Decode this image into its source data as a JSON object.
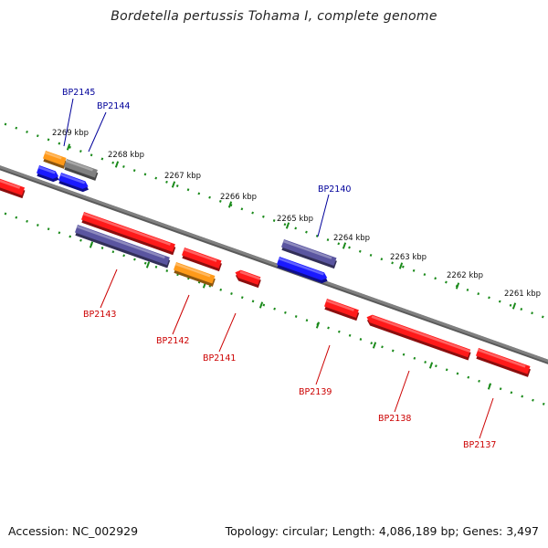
{
  "title": "Bordetella pertussis Tohama I, complete genome",
  "footer": {
    "accession": "Accession: NC_002929",
    "summary": "Topology: circular; Length: 4,086,189 bp; Genes: 3,497"
  },
  "colors": {
    "background": "#ffffff",
    "backbone": "#808080",
    "tick": "#1a8a1a",
    "red_gene": "#ff1a1a",
    "blue_gene": "#1a1aff",
    "purple_gene": "#5a55a0",
    "orange_gene": "#ff9a1a",
    "gray_gene": "#808080",
    "label_forward": "#00009a",
    "label_reverse": "#cc0000"
  },
  "scale_labels": [
    "2269 kbp",
    "2268 kbp",
    "2267 kbp",
    "2266 kbp",
    "2265 kbp",
    "2264 kbp",
    "2263 kbp",
    "2262 kbp",
    "2261 kbp"
  ],
  "gene_labels": [
    {
      "text": "BP2145",
      "strand": "forward"
    },
    {
      "text": "BP2144",
      "strand": "forward"
    },
    {
      "text": "BP2140",
      "strand": "forward"
    },
    {
      "text": "BP2143",
      "strand": "reverse"
    },
    {
      "text": "BP2142",
      "strand": "reverse"
    },
    {
      "text": "BP2141",
      "strand": "reverse"
    },
    {
      "text": "BP2139",
      "strand": "reverse"
    },
    {
      "text": "BP2138",
      "strand": "reverse"
    },
    {
      "text": "BP2137",
      "strand": "reverse"
    }
  ]
}
